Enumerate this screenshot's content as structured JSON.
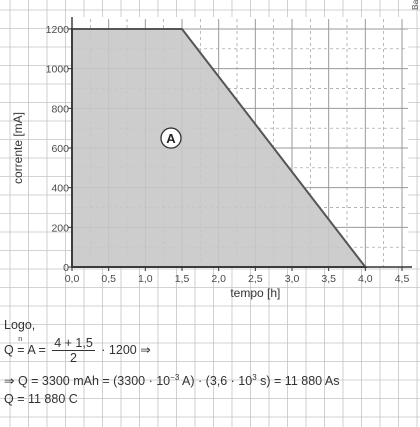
{
  "chart_data": {
    "type": "area",
    "title": "",
    "xlabel": "tempo [h]",
    "ylabel": "corrente [mA]",
    "xlim": [
      0,
      4.5
    ],
    "ylim": [
      0,
      1200
    ],
    "x_ticks": [
      "0,0",
      "0,5",
      "1,0",
      "1,5",
      "2,0",
      "2,5",
      "3,0",
      "3,5",
      "4,0",
      "4,5"
    ],
    "y_ticks": [
      "0",
      "200",
      "400",
      "600",
      "800",
      "1000",
      "1200"
    ],
    "grid": true,
    "series": [
      {
        "x": [
          0,
          1.5,
          4.0
        ],
        "y": [
          1200,
          1200,
          0
        ],
        "fill": "#c8c8c8",
        "stroke": "#555555"
      }
    ],
    "annotations": [
      {
        "text": "A",
        "x": 1.35,
        "y": 650
      }
    ],
    "credit": "Banco de imagens/Arquivo da editora"
  },
  "solution": {
    "logo": "Logo,",
    "line1_left": "Q",
    "line1_n": "n",
    "line1_eq_a": "=",
    "line1_a": "A =",
    "line1_num": "4 + 1,5",
    "line1_den": "2",
    "line1_right": "· 1200 ⇒",
    "line2_part1": "⇒ Q = 3300 mAh = (3300 · 10",
    "line2_exp1": "−3",
    "line2_part2": " A) · (3,6 · 10",
    "line2_exp2": "3",
    "line2_part3": " s) = 11 880 As",
    "line3": "Q = 11 880 C"
  }
}
